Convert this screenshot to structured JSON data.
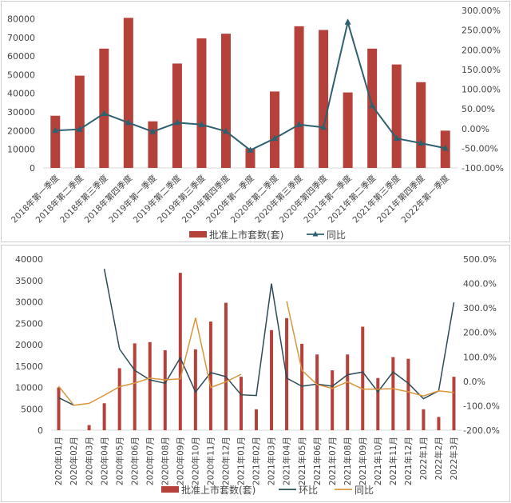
{
  "chart_data": [
    {
      "type": "bar+line",
      "title": "",
      "categories": [
        "2018年第一季度",
        "2018年第二季度",
        "2018年第三季度",
        "2018年第四季度",
        "2019年第一季度",
        "2019年第二季度",
        "2019年第三季度",
        "2019年第四季度",
        "2020年第一季度",
        "2020年第二季度",
        "2020年第三季度",
        "2020年第四季度",
        "2021年第一季度",
        "2021年第二季度",
        "2021年第三季度",
        "2021年第四季度",
        "2022年第一季度"
      ],
      "bar_series": {
        "name": "批准上市套数(套)",
        "color": "#b5413b",
        "axis": "left",
        "values": [
          28000,
          49500,
          64000,
          80500,
          25000,
          56000,
          69500,
          72000,
          10500,
          41000,
          76000,
          74000,
          40500,
          64000,
          55500,
          46000,
          20000
        ]
      },
      "line_series": [
        {
          "name": "同比",
          "color": "#2f6070",
          "axis": "right",
          "marker": "triangle",
          "values": [
            -5,
            -2,
            38,
            15,
            -8,
            15,
            10,
            -7,
            -55,
            -25,
            10,
            3,
            270,
            58,
            -25,
            -37,
            -50
          ]
        }
      ],
      "left_axis": {
        "ticks": [
          "0",
          "10000",
          "20000",
          "30000",
          "40000",
          "50000",
          "60000",
          "70000",
          "80000"
        ],
        "range": [
          0,
          84500
        ]
      },
      "right_axis": {
        "ticks": [
          "-100.00%",
          "-50.00%",
          "0.00%",
          "50.00%",
          "100.00%",
          "150.00%",
          "200.00%",
          "250.00%",
          "300.00%"
        ],
        "range": [
          -100,
          300
        ]
      },
      "legend": "bottom"
    },
    {
      "type": "bar+line",
      "title": "",
      "categories": [
        "2020年01月",
        "2020年02月",
        "2020年03月",
        "2020年04月",
        "2020年05月",
        "2020年06月",
        "2020年07月",
        "2020年08月",
        "2020年09月",
        "2020年10月",
        "2020年11月",
        "2020年12月",
        "2021年01月",
        "2021年02月",
        "2021年03月",
        "2021年04月",
        "2021年05月",
        "2021年06月",
        "2021年07月",
        "2021年08月",
        "2021年09月",
        "2021年10月",
        "2021年11月",
        "2021年12月",
        "2022年1月",
        "2022年2月",
        "2022年3月"
      ],
      "bar_series": {
        "name": "批准上市套数(套)",
        "color": "#b5413b",
        "axis": "left",
        "values": [
          10000,
          0,
          1200,
          6300,
          14500,
          20300,
          20600,
          18700,
          36800,
          18900,
          25400,
          29800,
          12500,
          4900,
          23400,
          26200,
          20200,
          17700,
          14000,
          17700,
          24200,
          12200,
          17100,
          16700,
          4900,
          3100,
          12500
        ]
      },
      "line_series": [
        {
          "name": "环比",
          "color": "#2a4b57",
          "axis": "right",
          "marker": "none",
          "values": [
            -67,
            -98,
            null,
            460,
            132,
            45,
            6,
            -8,
            96,
            -44,
            36,
            19,
            -55,
            -58,
            400,
            13,
            -20,
            -11,
            -20,
            27,
            38,
            -43,
            38,
            -8,
            -71,
            -39,
            323
          ]
        },
        {
          "name": "同比",
          "color": "#d9973c",
          "axis": "right",
          "marker": "none",
          "values": [
            -20,
            -98,
            -90,
            -57,
            -22,
            -7,
            13,
            6,
            10,
            260,
            -25,
            -2,
            29,
            null,
            null,
            328,
            45,
            -13,
            -29,
            -2,
            -32,
            -32,
            -30,
            -43,
            -60,
            -39,
            -46
          ]
        }
      ],
      "left_axis": {
        "ticks": [
          "0",
          "5000",
          "10000",
          "15000",
          "20000",
          "25000",
          "30000",
          "35000",
          "40000"
        ],
        "range": [
          0,
          40000
        ]
      },
      "right_axis": {
        "ticks": [
          "-200.0%",
          "-100.0%",
          "0.0%",
          "100.0%",
          "200.0%",
          "300.0%",
          "400.0%",
          "500.0%"
        ],
        "range": [
          -200,
          500
        ]
      },
      "legend": "bottom"
    }
  ]
}
